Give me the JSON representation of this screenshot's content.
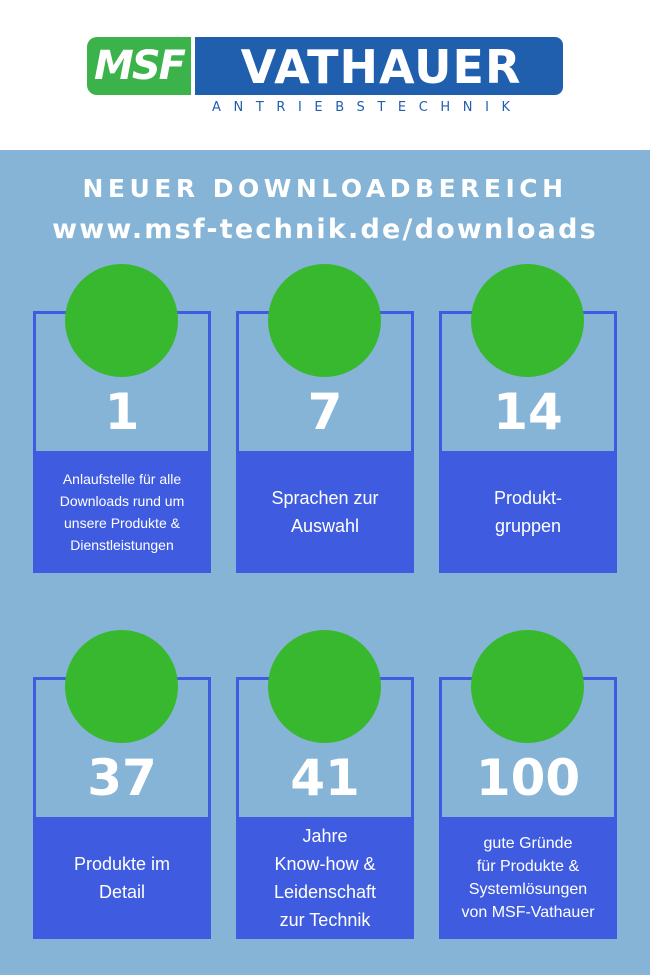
{
  "logo": {
    "msf": "MSF",
    "name": "VATHAUER",
    "tagline": "ANTRIEBSTECHNIK"
  },
  "title": "NEUER DOWNLOADBEREICH",
  "url": "www.msf-technik.de/downloads",
  "colors": {
    "background": "#85b4d6",
    "card_blue": "#3f5ce0",
    "circle_green": "#38b82e",
    "logo_green": "#3bb34a",
    "logo_blue": "#1f5fae"
  },
  "cards": [
    {
      "number": "1",
      "text": "Anlaufstelle für alle\nDownloads rund um\nunsere Produkte &\nDienstleistungen"
    },
    {
      "number": "7",
      "text": "Sprachen zur\nAuswahl"
    },
    {
      "number": "14",
      "text": "Produkt-\ngruppen"
    },
    {
      "number": "37",
      "text": "Produkte im\nDetail"
    },
    {
      "number": "41",
      "text": "Jahre\nKnow-how &\nLeidenschaft\nzur Technik"
    },
    {
      "number": "100",
      "text": "gute Gründe\nfür Produkte &\nSystemlösungen\nvon MSF-Vathauer"
    }
  ]
}
